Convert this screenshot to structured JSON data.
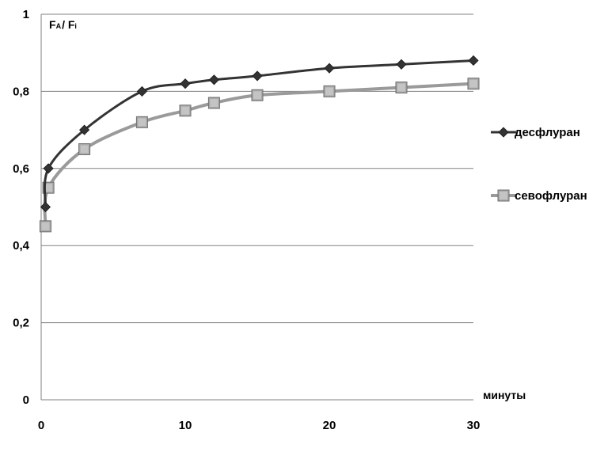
{
  "chart_data": {
    "type": "line",
    "xlabel": "минуты",
    "ylabel_main": "F",
    "ylabel_sub1": "A",
    "ylabel_sep": "/ F",
    "ylabel_sub2": "i",
    "xlim": [
      0,
      30
    ],
    "ylim": [
      0,
      1
    ],
    "xticks": [
      0,
      10,
      20,
      30
    ],
    "xtick_labels": [
      "0",
      "10",
      "20",
      "30"
    ],
    "yticks": [
      0,
      0.2,
      0.4,
      0.6,
      0.8,
      1
    ],
    "ytick_labels": [
      "0",
      "0,2",
      "0,4",
      "0,6",
      "0,8",
      "1"
    ],
    "grid": "horizontal",
    "legend_position": "right",
    "series": [
      {
        "name": "десфлуран",
        "marker": "diamond",
        "color": "#333333",
        "x": [
          0.3,
          0.5,
          3,
          7,
          10,
          12,
          15,
          20,
          25,
          30
        ],
        "y": [
          0.5,
          0.6,
          0.7,
          0.8,
          0.82,
          0.83,
          0.84,
          0.86,
          0.87,
          0.88
        ]
      },
      {
        "name": "севофлуран",
        "marker": "square",
        "color": "#9a9a9a",
        "x": [
          0.3,
          0.5,
          3,
          7,
          10,
          12,
          15,
          20,
          25,
          30
        ],
        "y": [
          0.45,
          0.55,
          0.65,
          0.72,
          0.75,
          0.77,
          0.79,
          0.8,
          0.81,
          0.82
        ]
      }
    ]
  }
}
